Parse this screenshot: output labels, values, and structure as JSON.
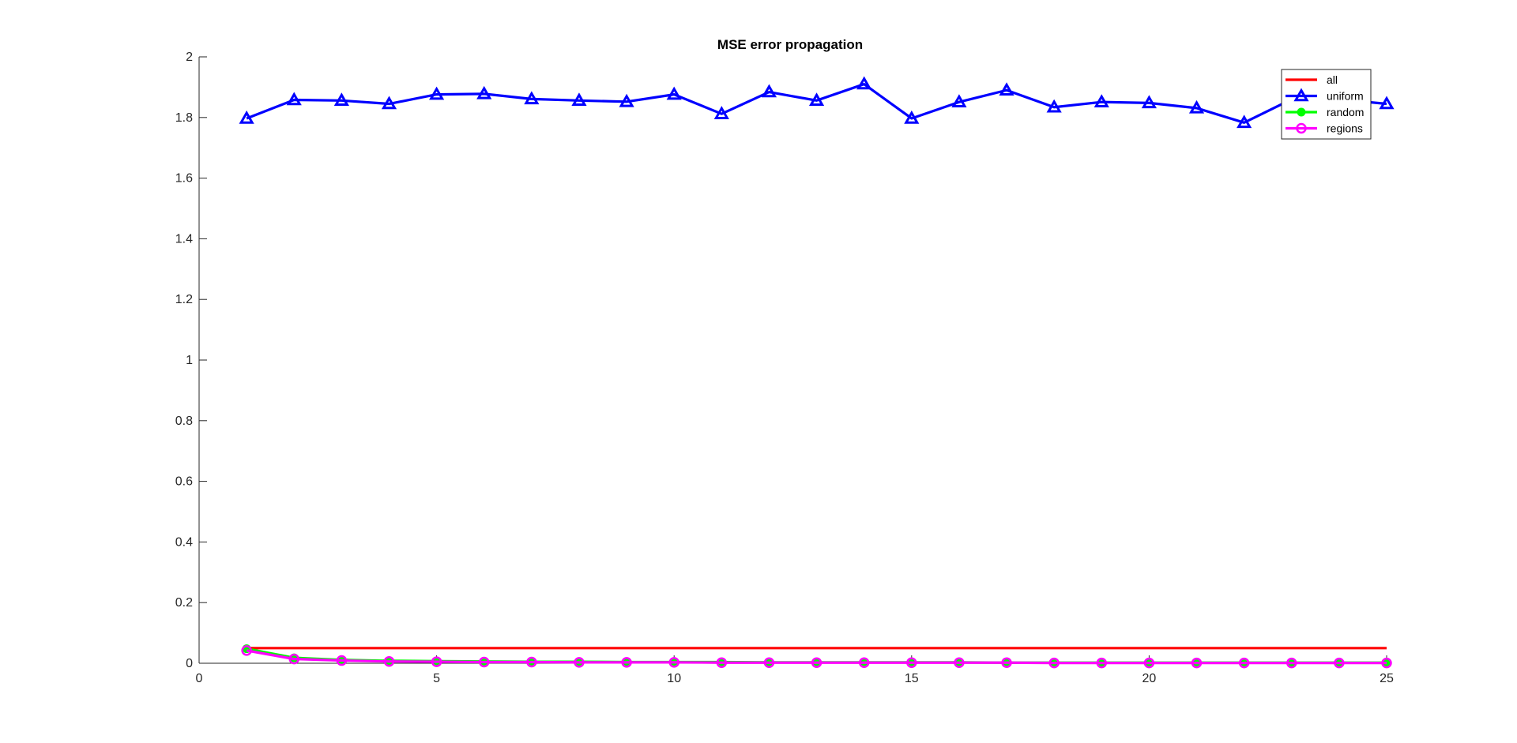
{
  "chart_data": {
    "type": "line",
    "title": "MSE error propagation",
    "xlabel": "",
    "ylabel": "",
    "xlim": [
      0,
      25
    ],
    "ylim": [
      0,
      2
    ],
    "xticks": [
      "0",
      "5",
      "10",
      "15",
      "20",
      "25"
    ],
    "yticks": [
      "0",
      "0.2",
      "0.4",
      "0.6",
      "0.8",
      "1",
      "1.2",
      "1.4",
      "1.6",
      "1.8",
      "2"
    ],
    "grid": false,
    "legend_position": "top-right",
    "x": [
      1,
      2,
      3,
      4,
      5,
      6,
      7,
      8,
      9,
      10,
      11,
      12,
      13,
      14,
      15,
      16,
      17,
      18,
      19,
      20,
      21,
      22,
      23,
      24,
      25
    ],
    "series": [
      {
        "name": "all",
        "color": "#ff0000",
        "marker": "none",
        "values": [
          0.05,
          0.05,
          0.05,
          0.05,
          0.05,
          0.05,
          0.05,
          0.05,
          0.05,
          0.05,
          0.05,
          0.05,
          0.05,
          0.05,
          0.05,
          0.05,
          0.05,
          0.05,
          0.05,
          0.05,
          0.05,
          0.05,
          0.05,
          0.05,
          0.05
        ]
      },
      {
        "name": "uniform",
        "color": "#0000ff",
        "marker": "triangle",
        "values": [
          1.797,
          1.858,
          1.856,
          1.845,
          1.876,
          1.878,
          1.861,
          1.856,
          1.852,
          1.876,
          1.812,
          1.884,
          1.856,
          1.91,
          1.797,
          1.851,
          1.89,
          1.834,
          1.851,
          1.848,
          1.831,
          1.783,
          1.86,
          1.86,
          1.845
        ]
      },
      {
        "name": "random",
        "color": "#00ff00",
        "marker": "dot",
        "values": [
          0.048,
          0.018,
          0.011,
          0.008,
          0.007,
          0.006,
          0.005,
          0.005,
          0.004,
          0.004,
          0.004,
          0.003,
          0.003,
          0.003,
          0.003,
          0.003,
          0.002,
          0.002,
          0.002,
          0.002,
          0.002,
          0.002,
          0.002,
          0.002,
          0.002
        ]
      },
      {
        "name": "regions",
        "color": "#ff00ff",
        "marker": "circle",
        "values": [
          0.042,
          0.014,
          0.009,
          0.006,
          0.005,
          0.004,
          0.004,
          0.003,
          0.003,
          0.003,
          0.002,
          0.002,
          0.002,
          0.002,
          0.002,
          0.002,
          0.002,
          0.001,
          0.001,
          0.001,
          0.001,
          0.001,
          0.001,
          0.001,
          0.001
        ]
      }
    ]
  }
}
